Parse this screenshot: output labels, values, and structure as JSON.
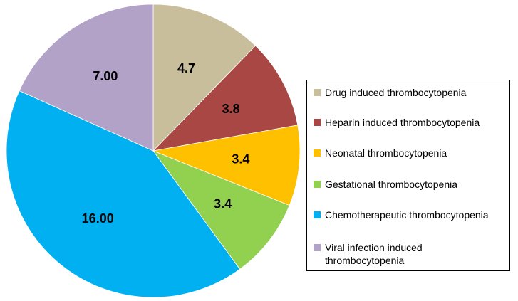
{
  "chart_data": {
    "type": "pie",
    "title": "",
    "categories": [
      "Drug induced thrombocytopenia",
      "Heparin induced thrombocytopenia",
      "Neonatal thrombocytopenia",
      "Gestational thrombocytopenia",
      "Chemotherapeutic thrombocytopenia",
      "Viral infection induced thrombocytopenia"
    ],
    "values": [
      4.7,
      3.8,
      3.4,
      3.4,
      16.0,
      7.0
    ],
    "data_labels": [
      "4.7",
      "3.8",
      "3.4",
      "3.4",
      "16.00",
      "7.00"
    ],
    "colors": [
      "#C9BE9C",
      "#A84743",
      "#FFC000",
      "#92D050",
      "#00B0F0",
      "#B3A2C7"
    ],
    "legend_position": "right"
  }
}
